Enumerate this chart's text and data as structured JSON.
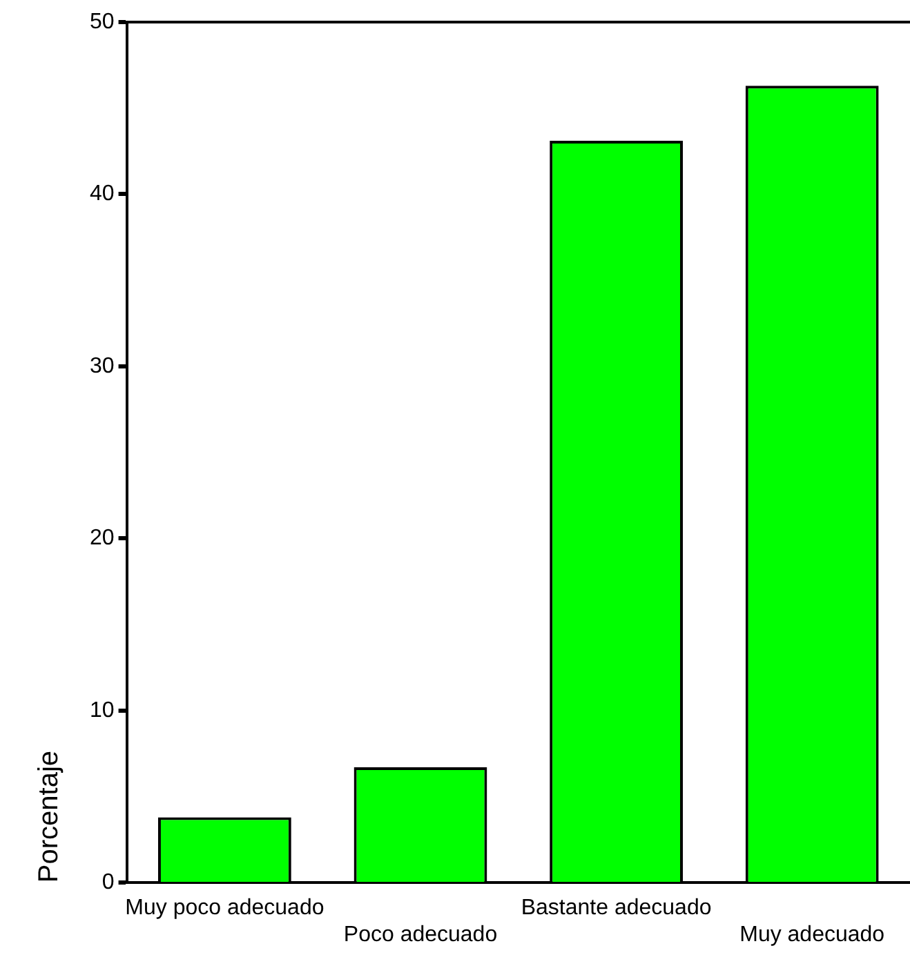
{
  "chart_data": {
    "type": "bar",
    "ylabel": "Porcentaje",
    "categories": [
      "Muy poco adecuado",
      "Poco adecuado",
      "Bastante adecuado",
      "Muy adecuado"
    ],
    "values": [
      3.8,
      6.7,
      43.1,
      46.3
    ],
    "color": "#00ff00",
    "ylim": [
      0,
      50
    ],
    "yticks": [
      0,
      10,
      20,
      30,
      40,
      50
    ],
    "grid": false,
    "legend": false
  }
}
